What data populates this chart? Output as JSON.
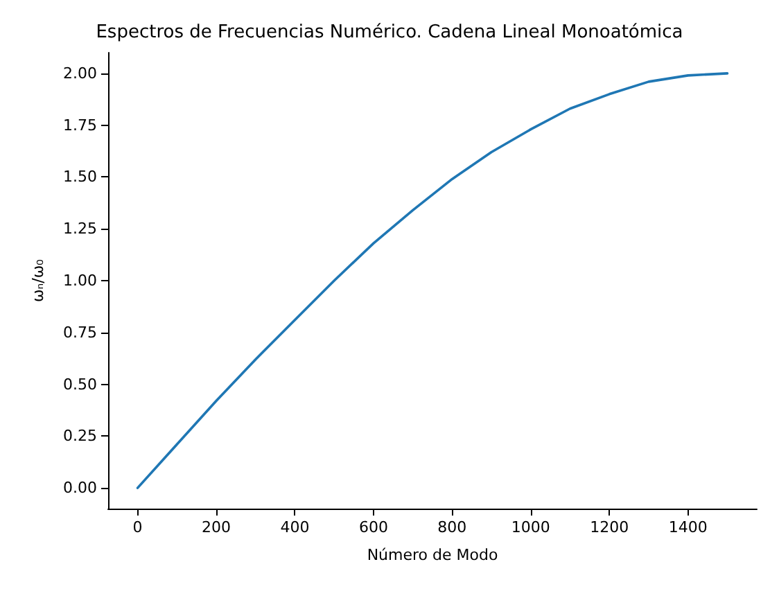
{
  "chart_data": {
    "type": "line",
    "title": "Espectros de Frecuencias Numérico. Cadena Lineal Monoatómica",
    "xlabel": "Número de Modo",
    "ylabel": "ωₙ/ω₀",
    "x": [
      0,
      100,
      200,
      300,
      400,
      500,
      600,
      700,
      800,
      900,
      1000,
      1100,
      1200,
      1300,
      1400,
      1500
    ],
    "series": [
      {
        "color": "#1f77b4",
        "values": [
          0,
          0.21,
          0.42,
          0.62,
          0.81,
          1.0,
          1.18,
          1.34,
          1.49,
          1.62,
          1.73,
          1.83,
          1.9,
          1.96,
          1.99,
          2.0
        ]
      }
    ],
    "xlim": [
      -75,
      1575
    ],
    "xticks": [
      0,
      200,
      400,
      600,
      800,
      1000,
      1200,
      1400
    ],
    "ylim": [
      -0.1,
      2.1
    ],
    "yticks": [
      {
        "value": 0,
        "label": "0.00"
      },
      {
        "value": 0.25,
        "label": "0.25"
      },
      {
        "value": 0.5,
        "label": "0.50"
      },
      {
        "value": 0.75,
        "label": "0.75"
      },
      {
        "value": 1,
        "label": "1.00"
      },
      {
        "value": 1.25,
        "label": "1.25"
      },
      {
        "value": 1.5,
        "label": "1.50"
      },
      {
        "value": 1.75,
        "label": "1.75"
      },
      {
        "value": 2,
        "label": "2.00"
      }
    ],
    "grid": false,
    "marker": "none",
    "line_style": "solid"
  }
}
